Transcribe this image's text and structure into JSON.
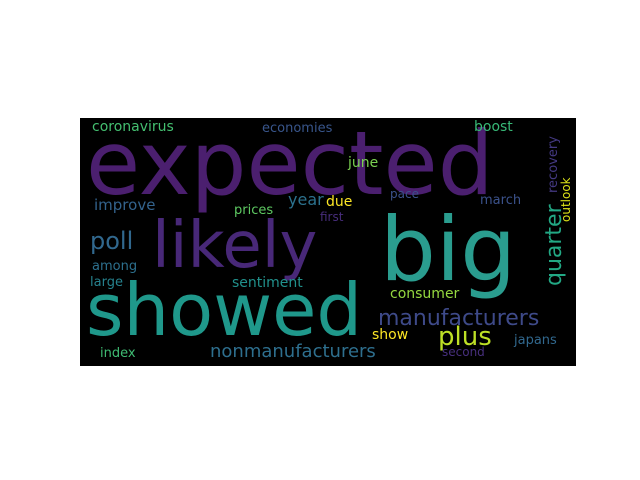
{
  "words": [
    {
      "text": "expected",
      "color": "#4b1f6f"
    },
    {
      "text": "showed",
      "color": "#1f988b"
    },
    {
      "text": "big",
      "color": "#2a9d8f"
    },
    {
      "text": "likely",
      "color": "#482878"
    },
    {
      "text": "manufacturers",
      "color": "#3e4a89"
    },
    {
      "text": "nonmanufacturers",
      "color": "#2e6f8e"
    },
    {
      "text": "poll",
      "color": "#31688e"
    },
    {
      "text": "plus",
      "color": "#bddf26"
    },
    {
      "text": "quarter",
      "color": "#22a884"
    },
    {
      "text": "consumer",
      "color": "#95d840"
    },
    {
      "text": "coronavirus",
      "color": "#44bf70"
    },
    {
      "text": "economies",
      "color": "#39568c"
    },
    {
      "text": "boost",
      "color": "#38b977"
    },
    {
      "text": "recovery",
      "color": "#443983"
    },
    {
      "text": "outlook",
      "color": "#dde318"
    },
    {
      "text": "june",
      "color": "#7ad151"
    },
    {
      "text": "year",
      "color": "#2c728e"
    },
    {
      "text": "due",
      "color": "#fde725"
    },
    {
      "text": "pace",
      "color": "#3b518b"
    },
    {
      "text": "march",
      "color": "#3b528b"
    },
    {
      "text": "improve",
      "color": "#33638d"
    },
    {
      "text": "prices",
      "color": "#5ec962"
    },
    {
      "text": "first",
      "color": "#472d7b"
    },
    {
      "text": "among",
      "color": "#2d708e"
    },
    {
      "text": "large",
      "color": "#26828e"
    },
    {
      "text": "sentiment",
      "color": "#21918c"
    },
    {
      "text": "show",
      "color": "#fde725"
    },
    {
      "text": "index",
      "color": "#3fbc73"
    },
    {
      "text": "second",
      "color": "#472f7d"
    },
    {
      "text": "japans",
      "color": "#31688e"
    }
  ]
}
